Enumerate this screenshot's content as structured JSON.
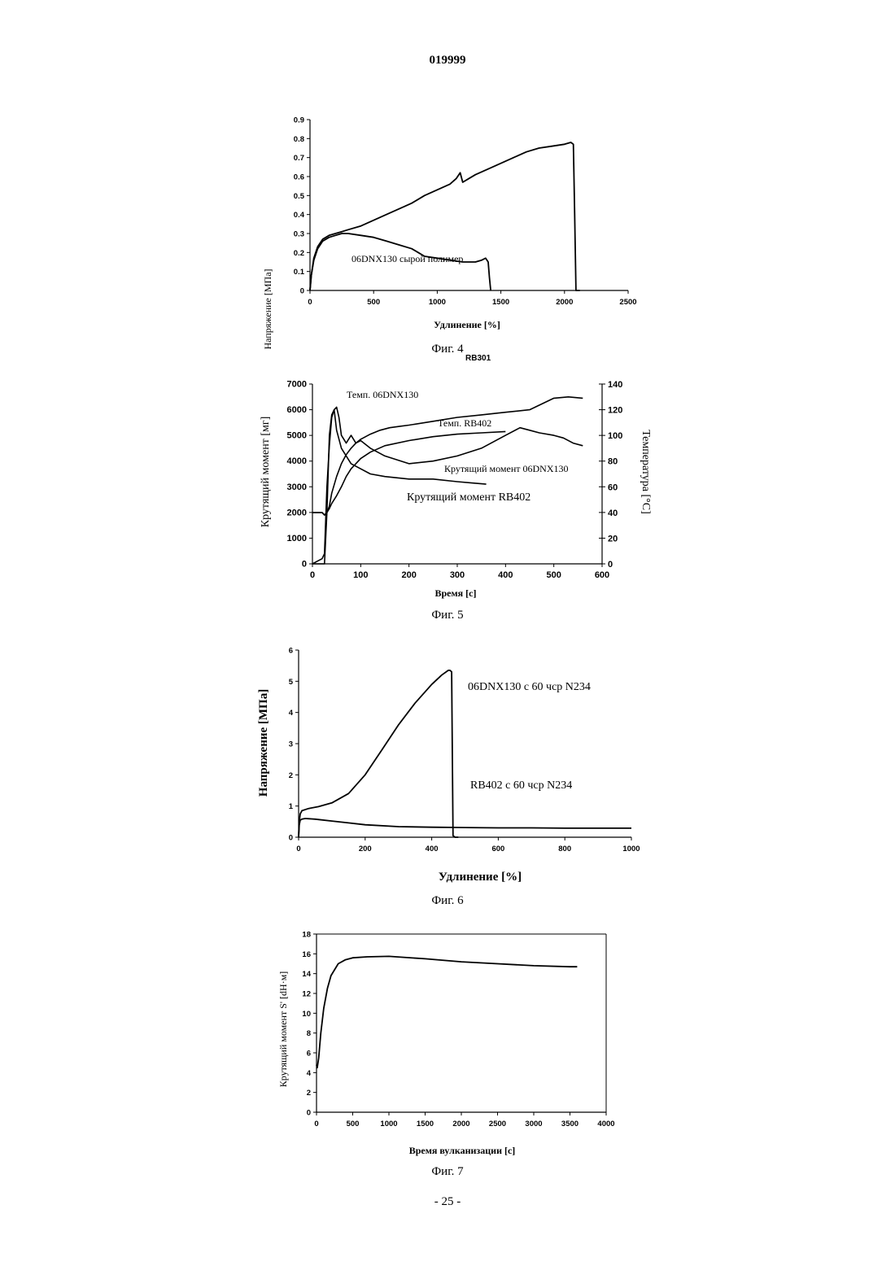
{
  "page": {
    "number": "019999",
    "footer": "- 25 -"
  },
  "chart_data": [
    {
      "type": "line",
      "caption": "Фиг. 4",
      "xlabel": "Удлинение [%]",
      "ylabel": "Напряжение [МПа]",
      "xlim": [
        0,
        2500
      ],
      "ylim": [
        0,
        0.9
      ],
      "xticks": [
        0,
        500,
        1000,
        1500,
        2000,
        2500
      ],
      "yticks": [
        0,
        0.1,
        0.2,
        0.3,
        0.4,
        0.5,
        0.6,
        0.7,
        0.8,
        0.9
      ],
      "grid": false,
      "series": [
        {
          "name": "06DNX130 сырой полимер",
          "axis": "left",
          "x": [
            0,
            10,
            30,
            60,
            100,
            150,
            200,
            250,
            300,
            400,
            500,
            600,
            700,
            800,
            900,
            1000,
            1100,
            1150,
            1180,
            1200,
            1250,
            1300,
            1400,
            1500,
            1600,
            1700,
            1800,
            1900,
            2000,
            2050,
            2070,
            2080,
            2090,
            2100,
            2120
          ],
          "y": [
            0,
            0.08,
            0.17,
            0.23,
            0.27,
            0.29,
            0.3,
            0.31,
            0.32,
            0.34,
            0.37,
            0.4,
            0.43,
            0.46,
            0.5,
            0.53,
            0.56,
            0.59,
            0.62,
            0.57,
            0.59,
            0.61,
            0.64,
            0.67,
            0.7,
            0.73,
            0.75,
            0.76,
            0.77,
            0.78,
            0.77,
            0.4,
            0.0,
            0.0,
            0.0
          ]
        },
        {
          "name": "RB301",
          "axis": "left",
          "x": [
            0,
            10,
            30,
            60,
            100,
            150,
            200,
            250,
            300,
            400,
            500,
            600,
            700,
            800,
            850,
            900,
            1000,
            1100,
            1200,
            1300,
            1350,
            1380,
            1400,
            1410,
            1420
          ],
          "y": [
            0,
            0.08,
            0.16,
            0.22,
            0.26,
            0.28,
            0.29,
            0.3,
            0.3,
            0.29,
            0.28,
            0.26,
            0.24,
            0.22,
            0.2,
            0.18,
            0.17,
            0.16,
            0.15,
            0.15,
            0.16,
            0.17,
            0.15,
            0.07,
            0.0
          ]
        }
      ]
    },
    {
      "type": "line",
      "caption": "Фиг. 5",
      "xlabel": "Время [с]",
      "ylabel": "Крутящий момент [мг]",
      "y2label": "Температура [°С]",
      "xlim": [
        0,
        600
      ],
      "ylim": [
        0,
        7000
      ],
      "y2lim": [
        0,
        140
      ],
      "xticks": [
        0,
        100,
        200,
        300,
        400,
        500,
        600
      ],
      "yticks": [
        0,
        1000,
        2000,
        3000,
        4000,
        5000,
        6000,
        7000
      ],
      "y2ticks": [
        0,
        20,
        40,
        60,
        80,
        100,
        120,
        140
      ],
      "grid": false,
      "series": [
        {
          "name": "Темп. 06DNX130",
          "axis": "right",
          "x": [
            0,
            10,
            20,
            25,
            30,
            35,
            40,
            50,
            60,
            70,
            80,
            90,
            100,
            120,
            140,
            160,
            180,
            200,
            250,
            300,
            350,
            400,
            450,
            500,
            530,
            560
          ],
          "y": [
            40,
            40,
            40,
            38,
            40,
            45,
            55,
            68,
            78,
            85,
            90,
            94,
            97,
            101,
            104,
            106,
            107,
            108,
            111,
            114,
            116,
            118,
            120,
            129,
            130,
            129
          ]
        },
        {
          "name": "Темп. RB402",
          "axis": "right",
          "x": [
            0,
            10,
            20,
            25,
            30,
            35,
            40,
            50,
            60,
            70,
            80,
            100,
            120,
            150,
            200,
            250,
            300,
            350,
            400
          ],
          "y": [
            40,
            40,
            40,
            38,
            40,
            43,
            47,
            53,
            60,
            68,
            74,
            82,
            87,
            92,
            96,
            99,
            101,
            102,
            103
          ]
        },
        {
          "name": "Крутящий момент 06DNX130",
          "axis": "left",
          "x": [
            0,
            20,
            25,
            30,
            35,
            40,
            45,
            50,
            55,
            60,
            70,
            80,
            90,
            100,
            120,
            150,
            200,
            250,
            300,
            350,
            400,
            430,
            450,
            470,
            500,
            520,
            540,
            560
          ],
          "y": [
            0,
            0,
            0,
            2000,
            5000,
            5800,
            6000,
            6100,
            5700,
            5000,
            4700,
            5000,
            4700,
            4800,
            4500,
            4200,
            3900,
            4000,
            4200,
            4500,
            5000,
            5300,
            5200,
            5100,
            5000,
            4900,
            4700,
            4600
          ]
        },
        {
          "name": "Крутящий момент RB402",
          "axis": "left",
          "x": [
            0,
            10,
            20,
            25,
            30,
            35,
            40,
            45,
            50,
            60,
            70,
            80,
            100,
            120,
            150,
            200,
            250,
            300,
            330,
            360
          ],
          "y": [
            0,
            100,
            200,
            400,
            3000,
            4600,
            5700,
            6000,
            5200,
            4500,
            4200,
            3900,
            3700,
            3500,
            3400,
            3300,
            3300,
            3200,
            3150,
            3100
          ]
        }
      ]
    },
    {
      "type": "line",
      "caption": "Фиг. 6",
      "xlabel": "Удлинение [%]",
      "ylabel": "Напряжение [МПа]",
      "xlim": [
        0,
        1000
      ],
      "ylim": [
        0,
        6
      ],
      "xticks": [
        0,
        200,
        400,
        600,
        800,
        1000
      ],
      "yticks": [
        0,
        1,
        2,
        3,
        4,
        5,
        6
      ],
      "grid": false,
      "series": [
        {
          "name": "06DNX130 с 60 чср N234",
          "axis": "left",
          "x": [
            0,
            2,
            5,
            10,
            30,
            60,
            100,
            150,
            200,
            250,
            300,
            350,
            400,
            430,
            450,
            455,
            460,
            462,
            464,
            470,
            480
          ],
          "y": [
            0,
            0.5,
            0.75,
            0.85,
            0.92,
            0.98,
            1.1,
            1.4,
            2.0,
            2.8,
            3.6,
            4.3,
            4.9,
            5.2,
            5.35,
            5.35,
            5.3,
            2.5,
            0.05,
            0.0,
            0.0
          ]
        },
        {
          "name": "RB402 с 60 чср N234",
          "axis": "left",
          "x": [
            0,
            2,
            5,
            10,
            20,
            50,
            100,
            150,
            200,
            300,
            400,
            500,
            600,
            700,
            800,
            900,
            1000
          ],
          "y": [
            0,
            0.4,
            0.55,
            0.58,
            0.6,
            0.58,
            0.52,
            0.46,
            0.4,
            0.34,
            0.32,
            0.31,
            0.3,
            0.3,
            0.29,
            0.29,
            0.29
          ]
        }
      ]
    },
    {
      "type": "line",
      "caption": "Фиг. 7",
      "xlabel": "Время вулканизации [с]",
      "ylabel": "Крутящий момент S' [dH·м]",
      "xlim": [
        0,
        4000
      ],
      "ylim": [
        0,
        18
      ],
      "xticks": [
        0,
        500,
        1000,
        1500,
        2000,
        2500,
        3000,
        3500,
        4000
      ],
      "yticks": [
        0,
        2,
        4,
        6,
        8,
        10,
        12,
        14,
        16,
        18
      ],
      "grid": false,
      "series": [
        {
          "name": "",
          "axis": "left",
          "x": [
            0,
            10,
            30,
            60,
            100,
            150,
            200,
            300,
            400,
            500,
            700,
            1000,
            1500,
            2000,
            2500,
            3000,
            3500,
            3600
          ],
          "y": [
            4.8,
            4.5,
            5.5,
            8.0,
            10.5,
            12.5,
            13.8,
            15.0,
            15.4,
            15.6,
            15.7,
            15.75,
            15.5,
            15.2,
            15.0,
            14.8,
            14.7,
            14.7
          ]
        }
      ]
    }
  ]
}
